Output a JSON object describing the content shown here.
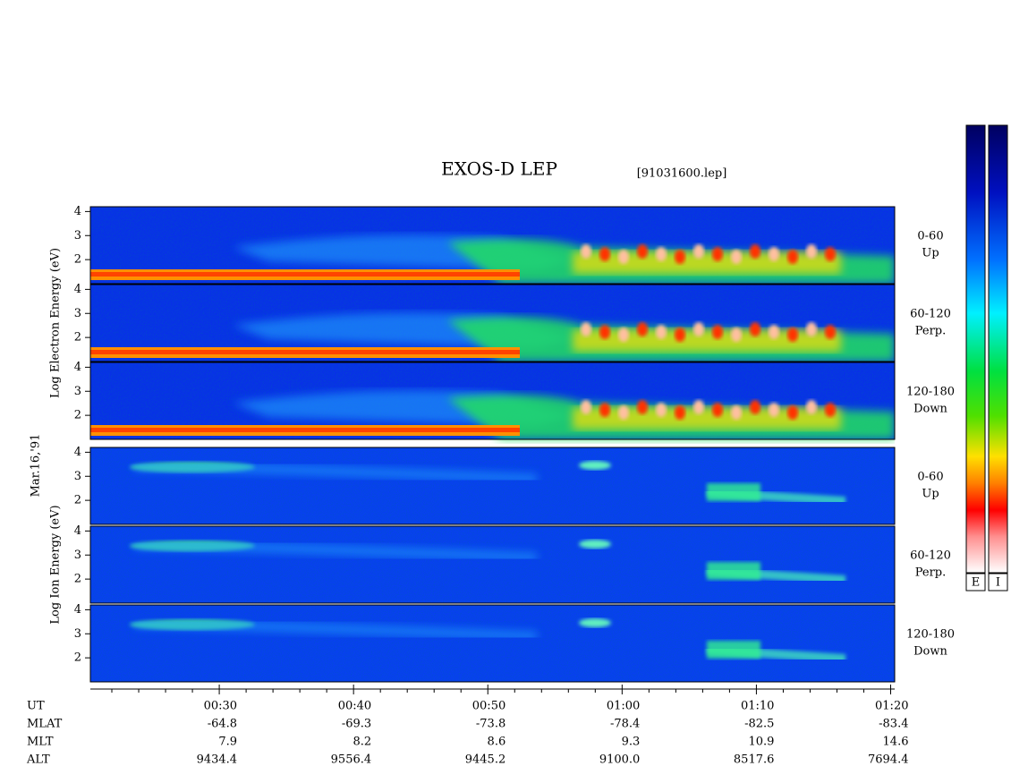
{
  "chart_data": {
    "type": "spectrogram",
    "title": "EXOS-D LEP",
    "file": "[91031600.lep]",
    "date_label": "Mar.16,'91",
    "groups": [
      {
        "label": "Log Electron Energy (eV)",
        "panels": [
          {
            "angle": "0-60",
            "direction": "Up"
          },
          {
            "angle": "60-120",
            "direction": "Perp."
          },
          {
            "angle": "120-180",
            "direction": "Down"
          }
        ]
      },
      {
        "label": "Log Ion Energy (eV)",
        "panels": [
          {
            "angle": "0-60",
            "direction": "Up"
          },
          {
            "angle": "60-120",
            "direction": "Perp."
          },
          {
            "angle": "120-180",
            "direction": "Down"
          }
        ]
      }
    ],
    "ylim": [
      1,
      4.2
    ],
    "yticks": [
      2,
      3,
      4
    ],
    "x_label": "UT",
    "xlim": [
      20.4,
      80.3
    ],
    "xticks": [
      {
        "value": 30,
        "label": "00:30"
      },
      {
        "value": 40,
        "label": "00:40"
      },
      {
        "value": 50,
        "label": "00:50"
      },
      {
        "value": 60,
        "label": "01:00"
      },
      {
        "value": 70,
        "label": "01:10"
      },
      {
        "value": 80,
        "label": "01:20"
      }
    ],
    "xminorticks": [
      22,
      24,
      26,
      28,
      32,
      34,
      36,
      38,
      42,
      44,
      46,
      48,
      52,
      54,
      56,
      58,
      62,
      64,
      66,
      68,
      72,
      74,
      76,
      78
    ],
    "orbit_rows": [
      {
        "name": "MLAT",
        "values": [
          "-64.8",
          "-69.3",
          "-73.8",
          "-78.4",
          "-82.5",
          "-83.4"
        ]
      },
      {
        "name": "MLT",
        "values": [
          "7.9",
          "8.2",
          "8.6",
          "9.3",
          "10.9",
          "14.6"
        ]
      },
      {
        "name": "ALT",
        "values": [
          "9434.4",
          "9556.4",
          "9445.2",
          "9100.0",
          "8517.6",
          "7694.4"
        ]
      }
    ],
    "colorbars": [
      "E",
      "I"
    ]
  }
}
